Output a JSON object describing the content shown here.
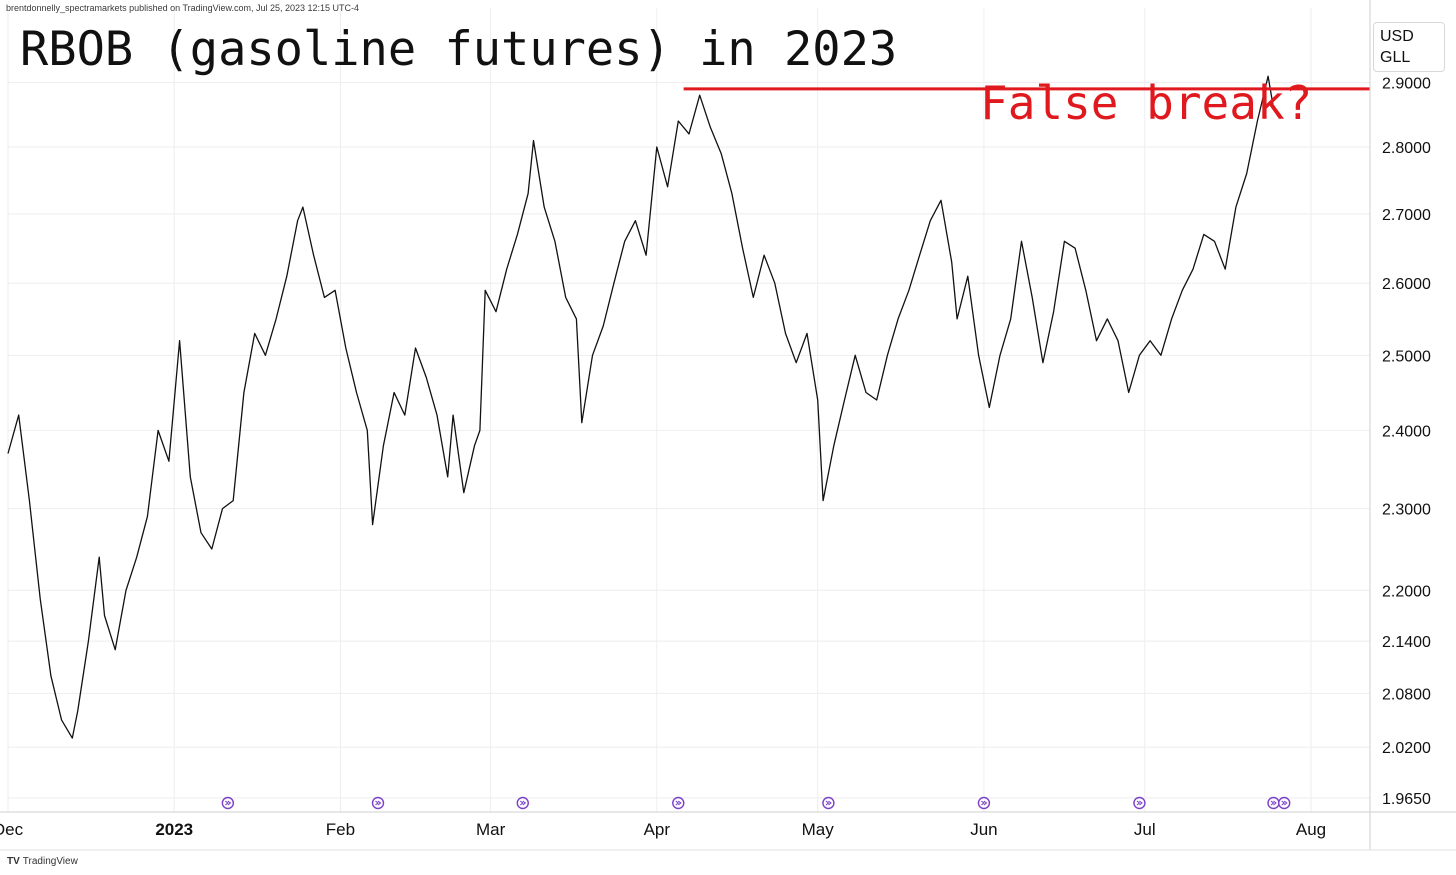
{
  "header": {
    "published_note": "brentdonnelly_spectramarkets published on TradingView.com, Jul 25, 2023 12:15 UTC-4"
  },
  "footer": {
    "logo_text": "TradingView",
    "logo_mark": "TV"
  },
  "chart_data": {
    "type": "line",
    "title": "RBOB (gasoline futures) in 2023",
    "unit_label": [
      "USD",
      "GLL"
    ],
    "y_scale": "log",
    "ylim": [
      1.95,
      3.02
    ],
    "xlim": [
      "2022-12-01",
      "2023-08-12"
    ],
    "y_ticks": [
      1.965,
      2.02,
      2.08,
      2.14,
      2.2,
      2.3,
      2.4,
      2.5,
      2.6,
      2.7,
      2.8,
      2.9
    ],
    "y_tick_labels": [
      "1.9650",
      "2.0200",
      "2.0800",
      "2.1400",
      "2.2000",
      "2.3000",
      "2.4000",
      "2.5000",
      "2.6000",
      "2.7000",
      "2.8000",
      "2.9000"
    ],
    "x_ticks": [
      {
        "date": "2022-12-01",
        "label": "Dec",
        "bold": false
      },
      {
        "date": "2023-01-01",
        "label": "2023",
        "bold": true
      },
      {
        "date": "2023-02-01",
        "label": "Feb",
        "bold": false
      },
      {
        "date": "2023-03-01",
        "label": "Mar",
        "bold": false
      },
      {
        "date": "2023-04-01",
        "label": "Apr",
        "bold": false
      },
      {
        "date": "2023-05-01",
        "label": "May",
        "bold": false
      },
      {
        "date": "2023-06-01",
        "label": "Jun",
        "bold": false
      },
      {
        "date": "2023-07-01",
        "label": "Jul",
        "bold": false
      },
      {
        "date": "2023-08-01",
        "label": "Aug",
        "bold": false
      }
    ],
    "grid": true,
    "legend": "none",
    "series": [
      {
        "points": [
          [
            "2022-12-01",
            2.37
          ],
          [
            "2022-12-03",
            2.42
          ],
          [
            "2022-12-05",
            2.31
          ],
          [
            "2022-12-07",
            2.19
          ],
          [
            "2022-12-09",
            2.1
          ],
          [
            "2022-12-11",
            2.05
          ],
          [
            "2022-12-13",
            2.03
          ],
          [
            "2022-12-14",
            2.06
          ],
          [
            "2022-12-16",
            2.14
          ],
          [
            "2022-12-18",
            2.24
          ],
          [
            "2022-12-19",
            2.17
          ],
          [
            "2022-12-21",
            2.13
          ],
          [
            "2022-12-23",
            2.2
          ],
          [
            "2022-12-25",
            2.24
          ],
          [
            "2022-12-27",
            2.29
          ],
          [
            "2022-12-29",
            2.4
          ],
          [
            "2022-12-31",
            2.36
          ],
          [
            "2023-01-02",
            2.52
          ],
          [
            "2023-01-04",
            2.34
          ],
          [
            "2023-01-06",
            2.27
          ],
          [
            "2023-01-08",
            2.25
          ],
          [
            "2023-01-10",
            2.3
          ],
          [
            "2023-01-12",
            2.31
          ],
          [
            "2023-01-14",
            2.45
          ],
          [
            "2023-01-16",
            2.53
          ],
          [
            "2023-01-18",
            2.5
          ],
          [
            "2023-01-20",
            2.55
          ],
          [
            "2023-01-22",
            2.61
          ],
          [
            "2023-01-24",
            2.69
          ],
          [
            "2023-01-25",
            2.71
          ],
          [
            "2023-01-27",
            2.64
          ],
          [
            "2023-01-29",
            2.58
          ],
          [
            "2023-01-31",
            2.59
          ],
          [
            "2023-02-02",
            2.51
          ],
          [
            "2023-02-04",
            2.45
          ],
          [
            "2023-02-06",
            2.4
          ],
          [
            "2023-02-07",
            2.28
          ],
          [
            "2023-02-09",
            2.38
          ],
          [
            "2023-02-11",
            2.45
          ],
          [
            "2023-02-13",
            2.42
          ],
          [
            "2023-02-15",
            2.51
          ],
          [
            "2023-02-17",
            2.47
          ],
          [
            "2023-02-19",
            2.42
          ],
          [
            "2023-02-21",
            2.34
          ],
          [
            "2023-02-22",
            2.42
          ],
          [
            "2023-02-24",
            2.32
          ],
          [
            "2023-02-26",
            2.38
          ],
          [
            "2023-02-27",
            2.4
          ],
          [
            "2023-02-28",
            2.59
          ],
          [
            "2023-03-02",
            2.56
          ],
          [
            "2023-03-04",
            2.62
          ],
          [
            "2023-03-06",
            2.67
          ],
          [
            "2023-03-08",
            2.73
          ],
          [
            "2023-03-09",
            2.81
          ],
          [
            "2023-03-11",
            2.71
          ],
          [
            "2023-03-13",
            2.66
          ],
          [
            "2023-03-15",
            2.58
          ],
          [
            "2023-03-17",
            2.55
          ],
          [
            "2023-03-18",
            2.41
          ],
          [
            "2023-03-20",
            2.5
          ],
          [
            "2023-03-22",
            2.54
          ],
          [
            "2023-03-24",
            2.6
          ],
          [
            "2023-03-26",
            2.66
          ],
          [
            "2023-03-28",
            2.69
          ],
          [
            "2023-03-30",
            2.64
          ],
          [
            "2023-04-01",
            2.8
          ],
          [
            "2023-04-03",
            2.74
          ],
          [
            "2023-04-05",
            2.84
          ],
          [
            "2023-04-07",
            2.82
          ],
          [
            "2023-04-09",
            2.88
          ],
          [
            "2023-04-11",
            2.83
          ],
          [
            "2023-04-13",
            2.79
          ],
          [
            "2023-04-15",
            2.73
          ],
          [
            "2023-04-17",
            2.65
          ],
          [
            "2023-04-19",
            2.58
          ],
          [
            "2023-04-21",
            2.64
          ],
          [
            "2023-04-23",
            2.6
          ],
          [
            "2023-04-25",
            2.53
          ],
          [
            "2023-04-27",
            2.49
          ],
          [
            "2023-04-29",
            2.53
          ],
          [
            "2023-05-01",
            2.44
          ],
          [
            "2023-05-02",
            2.31
          ],
          [
            "2023-05-04",
            2.38
          ],
          [
            "2023-05-06",
            2.44
          ],
          [
            "2023-05-08",
            2.5
          ],
          [
            "2023-05-10",
            2.45
          ],
          [
            "2023-05-12",
            2.44
          ],
          [
            "2023-05-14",
            2.5
          ],
          [
            "2023-05-16",
            2.55
          ],
          [
            "2023-05-18",
            2.59
          ],
          [
            "2023-05-20",
            2.64
          ],
          [
            "2023-05-22",
            2.69
          ],
          [
            "2023-05-24",
            2.72
          ],
          [
            "2023-05-26",
            2.63
          ],
          [
            "2023-05-27",
            2.55
          ],
          [
            "2023-05-29",
            2.61
          ],
          [
            "2023-05-31",
            2.5
          ],
          [
            "2023-06-02",
            2.43
          ],
          [
            "2023-06-04",
            2.5
          ],
          [
            "2023-06-06",
            2.55
          ],
          [
            "2023-06-08",
            2.66
          ],
          [
            "2023-06-10",
            2.58
          ],
          [
            "2023-06-12",
            2.49
          ],
          [
            "2023-06-14",
            2.56
          ],
          [
            "2023-06-16",
            2.66
          ],
          [
            "2023-06-18",
            2.65
          ],
          [
            "2023-06-20",
            2.59
          ],
          [
            "2023-06-22",
            2.52
          ],
          [
            "2023-06-24",
            2.55
          ],
          [
            "2023-06-26",
            2.52
          ],
          [
            "2023-06-28",
            2.45
          ],
          [
            "2023-06-30",
            2.5
          ],
          [
            "2023-07-02",
            2.52
          ],
          [
            "2023-07-04",
            2.5
          ],
          [
            "2023-07-06",
            2.55
          ],
          [
            "2023-07-08",
            2.59
          ],
          [
            "2023-07-10",
            2.62
          ],
          [
            "2023-07-12",
            2.67
          ],
          [
            "2023-07-14",
            2.66
          ],
          [
            "2023-07-16",
            2.62
          ],
          [
            "2023-07-18",
            2.71
          ],
          [
            "2023-07-20",
            2.76
          ],
          [
            "2023-07-22",
            2.84
          ],
          [
            "2023-07-24",
            2.91
          ],
          [
            "2023-07-25",
            2.86
          ]
        ]
      }
    ],
    "horizontal_line": {
      "value": 2.89,
      "from": "2023-04-06",
      "to": "2023-08-12",
      "color": "#e0191e"
    },
    "annotation": "False break?",
    "event_markers": [
      "2023-01-11",
      "2023-02-08",
      "2023-03-07",
      "2023-04-05",
      "2023-05-03",
      "2023-06-01",
      "2023-06-30",
      "2023-07-25",
      "2023-07-27"
    ],
    "colors": {
      "price_line": "#111111",
      "grid": "#eeeeee",
      "marker": "#7b3fc9",
      "axis_text": "#111111"
    }
  }
}
